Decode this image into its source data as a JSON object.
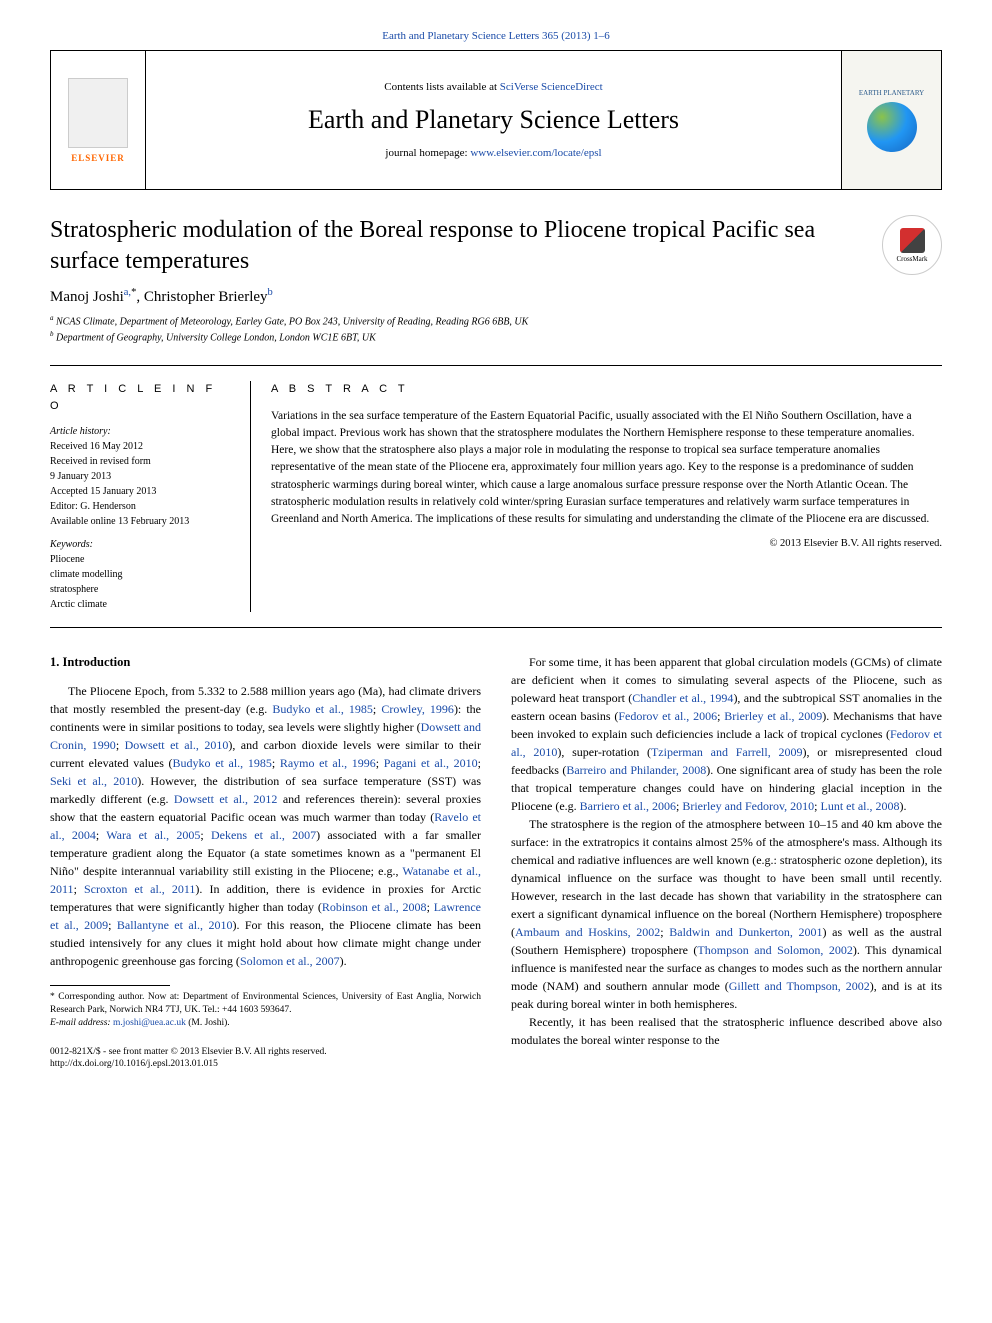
{
  "top_link": {
    "prefix": "",
    "journal": "Earth and Planetary Science Letters 365 (2013) 1–6"
  },
  "header": {
    "contents_prefix": "Contents lists available at ",
    "contents_link": "SciVerse ScienceDirect",
    "journal_name": "Earth and Planetary Science Letters",
    "homepage_prefix": "journal homepage: ",
    "homepage_link": "www.elsevier.com/locate/epsl",
    "elsevier_label": "ELSEVIER",
    "cover_title": "EARTH PLANETARY"
  },
  "title": "Stratospheric modulation of the Boreal response to Pliocene tropical Pacific sea surface temperatures",
  "crossmark_label": "CrossMark",
  "authors_html": "Manoj Joshi",
  "author_a_sup": "a,",
  "author_a_star": "*",
  "author_b": ", Christopher Brierley",
  "author_b_sup": "b",
  "affiliations": {
    "a": "NCAS Climate, Department of Meteorology, Earley Gate, PO Box 243, University of Reading, Reading RG6 6BB, UK",
    "b": "Department of Geography, University College London, London WC1E 6BT, UK"
  },
  "info": {
    "heading": "A R T I C L E  I N F O",
    "history_label": "Article history:",
    "received": "Received 16 May 2012",
    "revised": "Received in revised form",
    "revised_date": "9 January 2013",
    "accepted": "Accepted 15 January 2013",
    "editor": "Editor: G. Henderson",
    "online": "Available online 13 February 2013",
    "keywords_label": "Keywords:",
    "keywords": [
      "Pliocene",
      "climate modelling",
      "stratosphere",
      "Arctic climate"
    ]
  },
  "abstract": {
    "heading": "A B S T R A C T",
    "text": "Variations in the sea surface temperature of the Eastern Equatorial Pacific, usually associated with the El Niño Southern Oscillation, have a global impact. Previous work has shown that the stratosphere modulates the Northern Hemisphere response to these temperature anomalies. Here, we show that the stratosphere also plays a major role in modulating the response to tropical sea surface temperature anomalies representative of the mean state of the Pliocene era, approximately four million years ago. Key to the response is a predominance of sudden stratospheric warmings during boreal winter, which cause a large anomalous surface pressure response over the North Atlantic Ocean. The stratospheric modulation results in relatively cold winter/spring Eurasian surface temperatures and relatively warm surface temperatures in Greenland and North America. The implications of these results for simulating and understanding the climate of the Pliocene era are discussed.",
    "copyright": "© 2013 Elsevier B.V. All rights reserved."
  },
  "section1": {
    "heading": "1.  Introduction",
    "p1_a": "The Pliocene Epoch, from 5.332 to 2.588 million years ago (Ma), had climate drivers that mostly resembled the present-day (e.g. ",
    "r1": "Budyko et al., 1985",
    "p1_b": "; ",
    "r2": "Crowley, 1996",
    "p1_c": "): the continents were in similar positions to today, sea levels were slightly higher (",
    "r3": "Dowsett and Cronin, 1990",
    "p1_d": "; ",
    "r4": "Dowsett et al., 2010",
    "p1_e": "), and carbon dioxide levels were similar to their current elevated values (",
    "r5": "Budyko et al., 1985",
    "p1_f": "; ",
    "r6": "Raymo et al., 1996",
    "p1_g": "; ",
    "r7": "Pagani et al., 2010",
    "p1_h": "; ",
    "r8": "Seki et al., 2010",
    "p1_i": "). However, the distribution of sea surface temperature (SST) was markedly different (e.g. ",
    "r9": "Dowsett et al., 2012",
    "p1_j": " and references therein): several proxies show that the eastern equatorial Pacific ocean was much warmer than today (",
    "r10": "Ravelo et al., 2004",
    "p1_k": "; ",
    "r11": "Wara et al., 2005",
    "p1_l": "; ",
    "r12": "Dekens et al., 2007",
    "p1_m": ") associated with a far smaller temperature gradient along the Equator (a state sometimes known as a \"permanent El Niño\" despite interannual variability still existing in the Pliocene; e.g., ",
    "r13": "Watanabe et al., 2011",
    "p1_n": "; ",
    "r14": "Scroxton et al., 2011",
    "p1_o": "). In addition, there is evidence in proxies for Arctic temperatures that were significantly higher than today (",
    "r15": "Robinson et al., 2008",
    "p1_p": "; ",
    "r16": "Lawrence et al., 2009",
    "p1_q": "; ",
    "r17": "Ballantyne et al., 2010",
    "p1_r": "). For this reason, the Pliocene climate has been studied intensively for any clues it might hold about how climate might change under anthropogenic greenhouse gas forcing (",
    "r18": "Solomon et al., 2007",
    "p1_s": ")."
  },
  "col2": {
    "p1_a": "For some time, it has been apparent that global circulation models (GCMs) of climate are deficient when it comes to simulating several aspects of the Pliocene, such as poleward heat transport (",
    "r1": "Chandler et al., 1994",
    "p1_b": "), and the subtropical SST anomalies in the eastern ocean basins (",
    "r2": "Fedorov et al., 2006",
    "p1_c": "; ",
    "r3": "Brierley et al., 2009",
    "p1_d": "). Mechanisms that have been invoked to explain such deficiencies include a lack of tropical cyclones (",
    "r4": "Fedorov et al., 2010",
    "p1_e": "), super-rotation (",
    "r5": "Tziperman and Farrell, 2009",
    "p1_f": "), or misrepresented cloud feedbacks (",
    "r6": "Barreiro and Philander, 2008",
    "p1_g": "). One significant area of study has been the role that tropical temperature changes could have on hindering glacial inception in the Pliocene (e.g. ",
    "r7": "Barriero et al., 2006",
    "p1_h": "; ",
    "r8": "Brierley and Fedorov, 2010",
    "p1_i": "; ",
    "r9": "Lunt et al., 2008",
    "p1_j": ").",
    "p2_a": "The stratosphere is the region of the atmosphere between 10–15 and 40 km above the surface: in the extratropics it contains almost 25% of the atmosphere's mass. Although its chemical and radiative influences are well known (e.g.: stratospheric ozone depletion), its dynamical influence on the surface was thought to have been small until recently. However, research in the last decade has shown that variability in the stratosphere can exert a significant dynamical influence on the boreal (Northern Hemisphere) troposphere (",
    "r10": "Ambaum and Hoskins, 2002",
    "p2_b": "; ",
    "r11": "Baldwin and Dunkerton, 2001",
    "p2_c": ") as well as the austral (Southern Hemisphere) troposphere (",
    "r12": "Thompson and Solomon, 2002",
    "p2_d": "). This dynamical influence is manifested near the surface as changes to modes such as the northern annular mode (NAM) and southern annular mode (",
    "r13": "Gillett and Thompson, 2002",
    "p2_e": "), and is at its peak during boreal winter in both hemispheres.",
    "p3_a": "Recently, it has been realised that the stratospheric influence described above also modulates the boreal winter response to the"
  },
  "footnote": {
    "corr": "* Corresponding author. Now at: Department of Environmental Sciences, University of East Anglia, Norwich Research Park, Norwich NR4 7TJ, UK. Tel.: +44 1603 593647.",
    "email_label": "E-mail address: ",
    "email": "m.joshi@uea.ac.uk",
    "email_suffix": " (M. Joshi)."
  },
  "bottom": {
    "line1": "0012-821X/$ - see front matter © 2013 Elsevier B.V. All rights reserved.",
    "line2": "http://dx.doi.org/10.1016/j.epsl.2013.01.015"
  },
  "colors": {
    "link": "#1a4ba8",
    "elsevier": "#ff6600"
  }
}
